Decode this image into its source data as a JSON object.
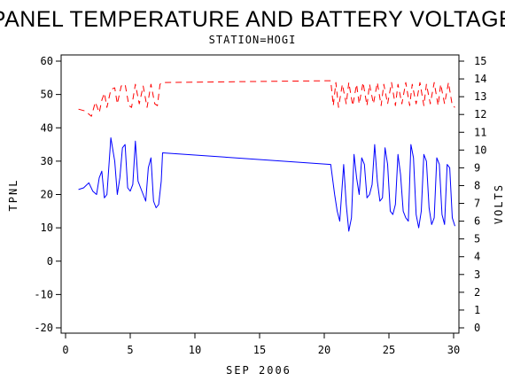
{
  "chart_data": {
    "type": "line",
    "title": "PANEL TEMPERATURE AND BATTERY VOLTAGE",
    "subtitle": "STATION=HOGI",
    "xlabel": "SEP 2006",
    "ylabel_left": "TPNL",
    "ylabel_right": "VOLTS",
    "xlim": [
      0,
      30
    ],
    "xticks": [
      0,
      5,
      10,
      15,
      20,
      25,
      30
    ],
    "ylim_left": [
      -20,
      60
    ],
    "yticks_left": [
      -20,
      -10,
      0,
      10,
      20,
      30,
      40,
      50,
      60
    ],
    "ylim_right": [
      0,
      15
    ],
    "yticks_right": [
      0,
      1,
      2,
      3,
      4,
      5,
      6,
      7,
      8,
      9,
      10,
      11,
      12,
      13,
      14,
      15
    ],
    "grid": false,
    "legend": "none",
    "series": [
      {
        "axis": "left",
        "color": "#0000ff",
        "style": "solid",
        "x": [
          1.0,
          1.4,
          1.8,
          2.1,
          2.4,
          2.6,
          2.8,
          3.0,
          3.2,
          3.5,
          3.8,
          4.0,
          4.2,
          4.4,
          4.6,
          4.8,
          5.0,
          5.2,
          5.4,
          5.6,
          5.8,
          6.0,
          6.2,
          6.4,
          6.6,
          6.8,
          7.0,
          7.2,
          7.4,
          7.5,
          20.5,
          20.8,
          21.0,
          21.2,
          21.5,
          21.7,
          21.9,
          22.1,
          22.3,
          22.5,
          22.7,
          22.9,
          23.1,
          23.3,
          23.5,
          23.7,
          23.9,
          24.1,
          24.3,
          24.5,
          24.7,
          24.9,
          25.1,
          25.3,
          25.5,
          25.7,
          25.9,
          26.1,
          26.3,
          26.5,
          26.7,
          26.9,
          27.1,
          27.3,
          27.5,
          27.7,
          27.9,
          28.1,
          28.3,
          28.5,
          28.7,
          28.9,
          29.1,
          29.3,
          29.5,
          29.7,
          29.9,
          30.1
        ],
        "y": [
          21.5,
          22,
          23.5,
          21,
          20,
          25,
          27,
          19,
          20,
          37,
          30,
          20,
          25,
          34,
          35,
          22,
          21,
          23,
          36,
          24,
          22,
          20,
          18,
          28,
          31,
          18,
          16,
          17,
          24,
          32.5,
          29,
          20,
          15,
          12,
          29,
          17,
          9,
          13,
          32,
          25,
          20,
          31,
          29,
          19,
          20,
          23,
          35,
          24,
          18,
          19,
          34,
          29,
          15,
          14,
          17,
          32,
          26,
          15,
          13,
          12,
          35,
          31,
          14,
          10,
          15,
          32,
          30,
          16,
          11,
          13,
          31,
          29,
          14,
          11,
          29,
          28,
          13,
          10.5
        ]
      },
      {
        "axis": "right",
        "color": "#ff0000",
        "style": "dashed",
        "x": [
          1.0,
          1.5,
          2.0,
          2.3,
          2.6,
          2.8,
          3.0,
          3.2,
          3.5,
          3.8,
          4.0,
          4.3,
          4.6,
          4.9,
          5.1,
          5.4,
          5.7,
          6.0,
          6.3,
          6.6,
          6.9,
          7.1,
          7.3,
          7.5,
          20.5,
          20.7,
          20.9,
          21.1,
          21.4,
          21.7,
          21.9,
          22.2,
          22.5,
          22.7,
          23.0,
          23.3,
          23.5,
          23.8,
          24.1,
          24.4,
          24.6,
          24.9,
          25.2,
          25.5,
          25.7,
          26.0,
          26.3,
          26.6,
          26.8,
          27.1,
          27.4,
          27.7,
          27.9,
          28.2,
          28.5,
          28.8,
          29.0,
          29.3,
          29.6,
          29.9,
          30.1
        ],
        "y": [
          12.3,
          12.2,
          11.9,
          12.7,
          12.1,
          12.8,
          13.2,
          12.4,
          13.4,
          13.5,
          12.6,
          13.6,
          13.7,
          12.5,
          12.4,
          13.7,
          12.6,
          13.6,
          12.4,
          13.7,
          12.6,
          12.5,
          13.7,
          13.8,
          13.9,
          12.5,
          13.8,
          12.4,
          13.7,
          12.6,
          13.8,
          12.5,
          13.7,
          12.6,
          13.8,
          12.5,
          13.7,
          12.6,
          13.8,
          12.5,
          13.7,
          12.6,
          13.8,
          12.5,
          13.7,
          12.6,
          13.8,
          12.5,
          13.7,
          12.6,
          13.8,
          12.5,
          13.7,
          12.6,
          13.8,
          12.5,
          13.7,
          12.6,
          13.8,
          12.5,
          12.4
        ]
      }
    ]
  }
}
